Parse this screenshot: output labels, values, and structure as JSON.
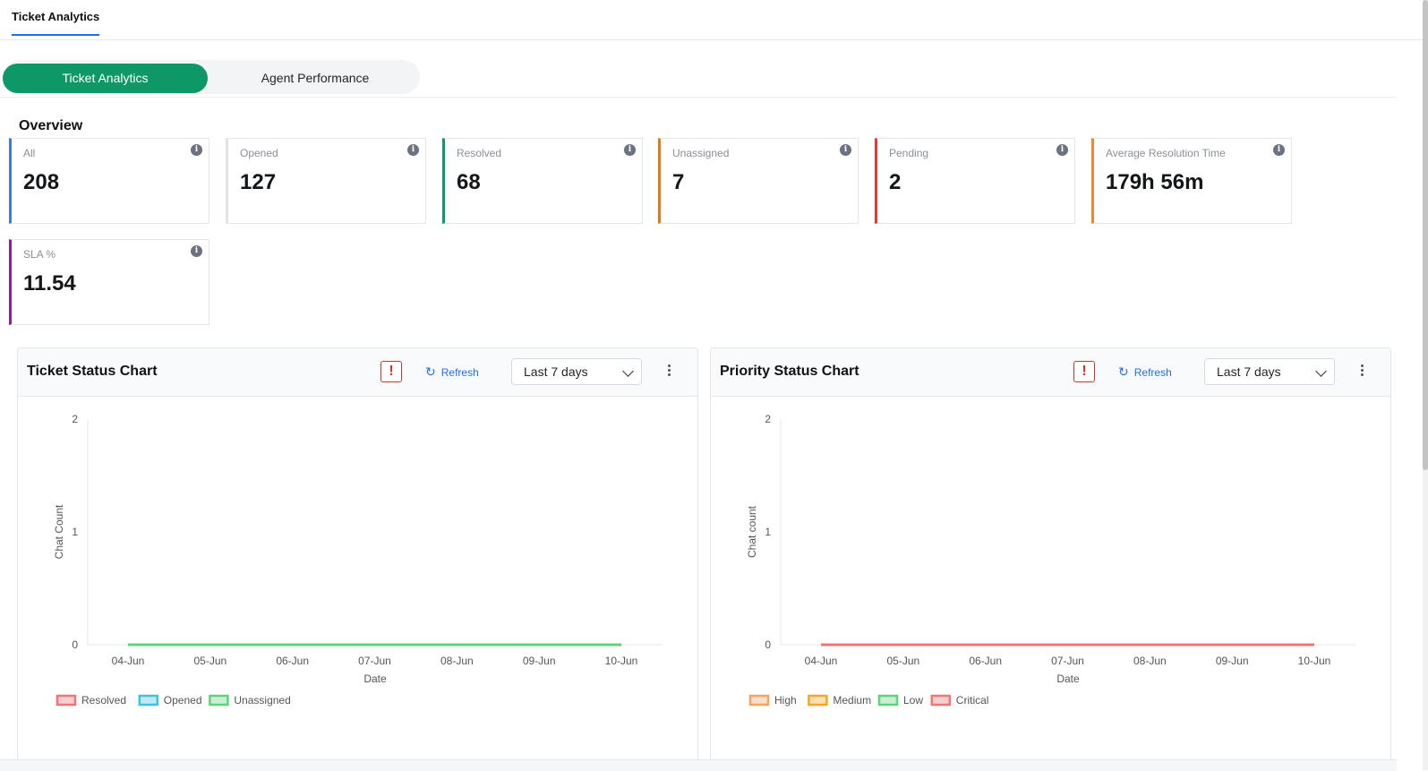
{
  "top_tab": "Ticket Analytics",
  "segments": {
    "active": "Ticket Analytics",
    "inactive": "Agent Performance"
  },
  "overview_title": "Overview",
  "cards": [
    {
      "label": "All",
      "value": "208",
      "color": "#3b7dd8"
    },
    {
      "label": "Opened",
      "value": "127",
      "color": "#dfe4ea"
    },
    {
      "label": "Resolved",
      "value": "68",
      "color": "#0e9767"
    },
    {
      "label": "Unassigned",
      "value": "7",
      "color": "#e07a16"
    },
    {
      "label": "Pending",
      "value": "2",
      "color": "#e53935"
    },
    {
      "label": "Average Resolution Time",
      "value": "179h 56m",
      "color": "#f2862f"
    },
    {
      "label": "SLA %",
      "value": "11.54",
      "color": "#8e1ea0"
    }
  ],
  "panels": [
    {
      "title": "Ticket Status Chart",
      "refresh": "Refresh",
      "range": "Last 7 days",
      "warn": "!"
    },
    {
      "title": "Priority Status Chart",
      "refresh": "Refresh",
      "range": "Last 7 days",
      "warn": "!"
    }
  ],
  "chart_data": [
    {
      "type": "line",
      "title": "Ticket Status Chart",
      "xlabel": "Date",
      "ylabel": "Chat Count",
      "x": [
        "04-Jun",
        "05-Jun",
        "06-Jun",
        "07-Jun",
        "08-Jun",
        "09-Jun",
        "10-Jun"
      ],
      "yticks": [
        "0",
        "1",
        "2"
      ],
      "ylim": [
        0,
        2
      ],
      "grid": false,
      "legend_position": "bottom-left",
      "series": [
        {
          "name": "Resolved",
          "color": "#f07575",
          "values": [
            0,
            0,
            0,
            0,
            0,
            0,
            0
          ]
        },
        {
          "name": "Opened",
          "color": "#3cc4e0",
          "values": [
            0,
            0,
            0,
            0,
            0,
            0,
            0
          ]
        },
        {
          "name": "Unassigned",
          "color": "#5ed47a",
          "values": [
            0,
            0,
            0,
            0,
            0,
            0,
            0
          ]
        }
      ]
    },
    {
      "type": "line",
      "title": "Priority Status Chart",
      "xlabel": "Date",
      "ylabel": "Chat count",
      "x": [
        "04-Jun",
        "05-Jun",
        "06-Jun",
        "07-Jun",
        "08-Jun",
        "09-Jun",
        "10-Jun"
      ],
      "yticks": [
        "0",
        "1",
        "2"
      ],
      "ylim": [
        0,
        2
      ],
      "grid": false,
      "legend_position": "bottom-left",
      "series": [
        {
          "name": "High",
          "color": "#f6a35c",
          "values": [
            0,
            0,
            0,
            0,
            0,
            0,
            0
          ]
        },
        {
          "name": "Medium",
          "color": "#f5a623",
          "values": [
            0,
            0,
            0,
            0,
            0,
            0,
            0
          ]
        },
        {
          "name": "Low",
          "color": "#5ed47a",
          "values": [
            0,
            0,
            0,
            0,
            0,
            0,
            0
          ]
        },
        {
          "name": "Critical",
          "color": "#f07575",
          "values": [
            0,
            0,
            0,
            0,
            0,
            0,
            0
          ]
        }
      ]
    }
  ]
}
